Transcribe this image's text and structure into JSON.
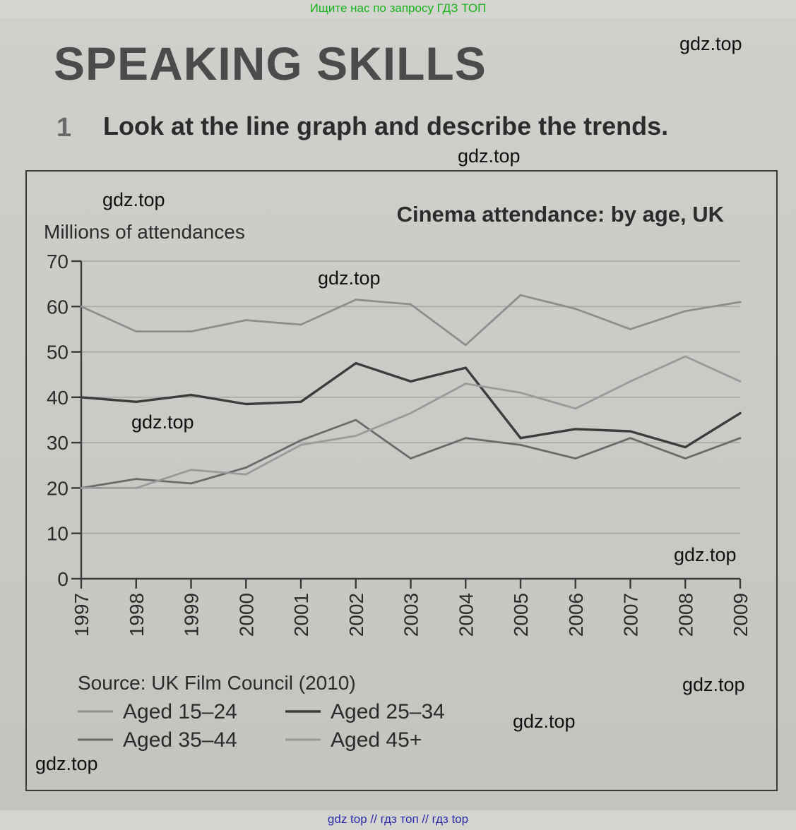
{
  "page": {
    "top_link": "Ищите нас по запросу ГДЗ ТОП",
    "heading": "SPEAKING SKILLS",
    "task_number": "1",
    "task_text": "Look at the line graph and describe the trends.",
    "watermark": "gdz.top",
    "bottom_link": "gdz top  //  гдз топ  //  гдз top",
    "colors": {
      "link_green": "#19b219",
      "link_blue": "#2a2aa8",
      "line_dark": "#3c3c3c",
      "line_light": "#8e8e8e"
    }
  },
  "chart_data": {
    "type": "line",
    "title": "Cinema attendance: by age, UK",
    "ylabel": "Millions of attendances",
    "xlabel": "",
    "ylim": [
      0,
      70
    ],
    "yticks": [
      0,
      10,
      20,
      30,
      40,
      50,
      60,
      70
    ],
    "x": [
      "1997",
      "1998",
      "1999",
      "2000",
      "2001",
      "2002",
      "2003",
      "2004",
      "2005",
      "2006",
      "2007",
      "2008",
      "2009"
    ],
    "source": "Source: UK Film Council (2010)",
    "grid": true,
    "legend_position": "bottom-left",
    "series": [
      {
        "name": "Aged 15–24",
        "color": "#8e8e8e",
        "values": [
          60,
          54.5,
          54.5,
          57,
          56,
          61.5,
          60.5,
          51.5,
          62.5,
          59.5,
          55,
          59,
          61
        ]
      },
      {
        "name": "Aged 25–34",
        "color": "#3c3c3c",
        "values": [
          40,
          39,
          40.5,
          38.5,
          39,
          47.5,
          43.5,
          46.5,
          31,
          33,
          32.5,
          29,
          36.5
        ]
      },
      {
        "name": "Aged 35–44",
        "color": "#6a6a6a",
        "values": [
          20,
          22,
          21,
          24.5,
          30.5,
          35,
          26.5,
          31,
          29.5,
          26.5,
          31,
          26.5,
          31
        ]
      },
      {
        "name": "Aged 45+",
        "color": "#9a9a9a",
        "values": [
          20,
          20,
          24,
          23,
          29.5,
          31.5,
          36.5,
          43,
          41,
          37.5,
          43.5,
          49,
          43.5
        ]
      }
    ]
  }
}
